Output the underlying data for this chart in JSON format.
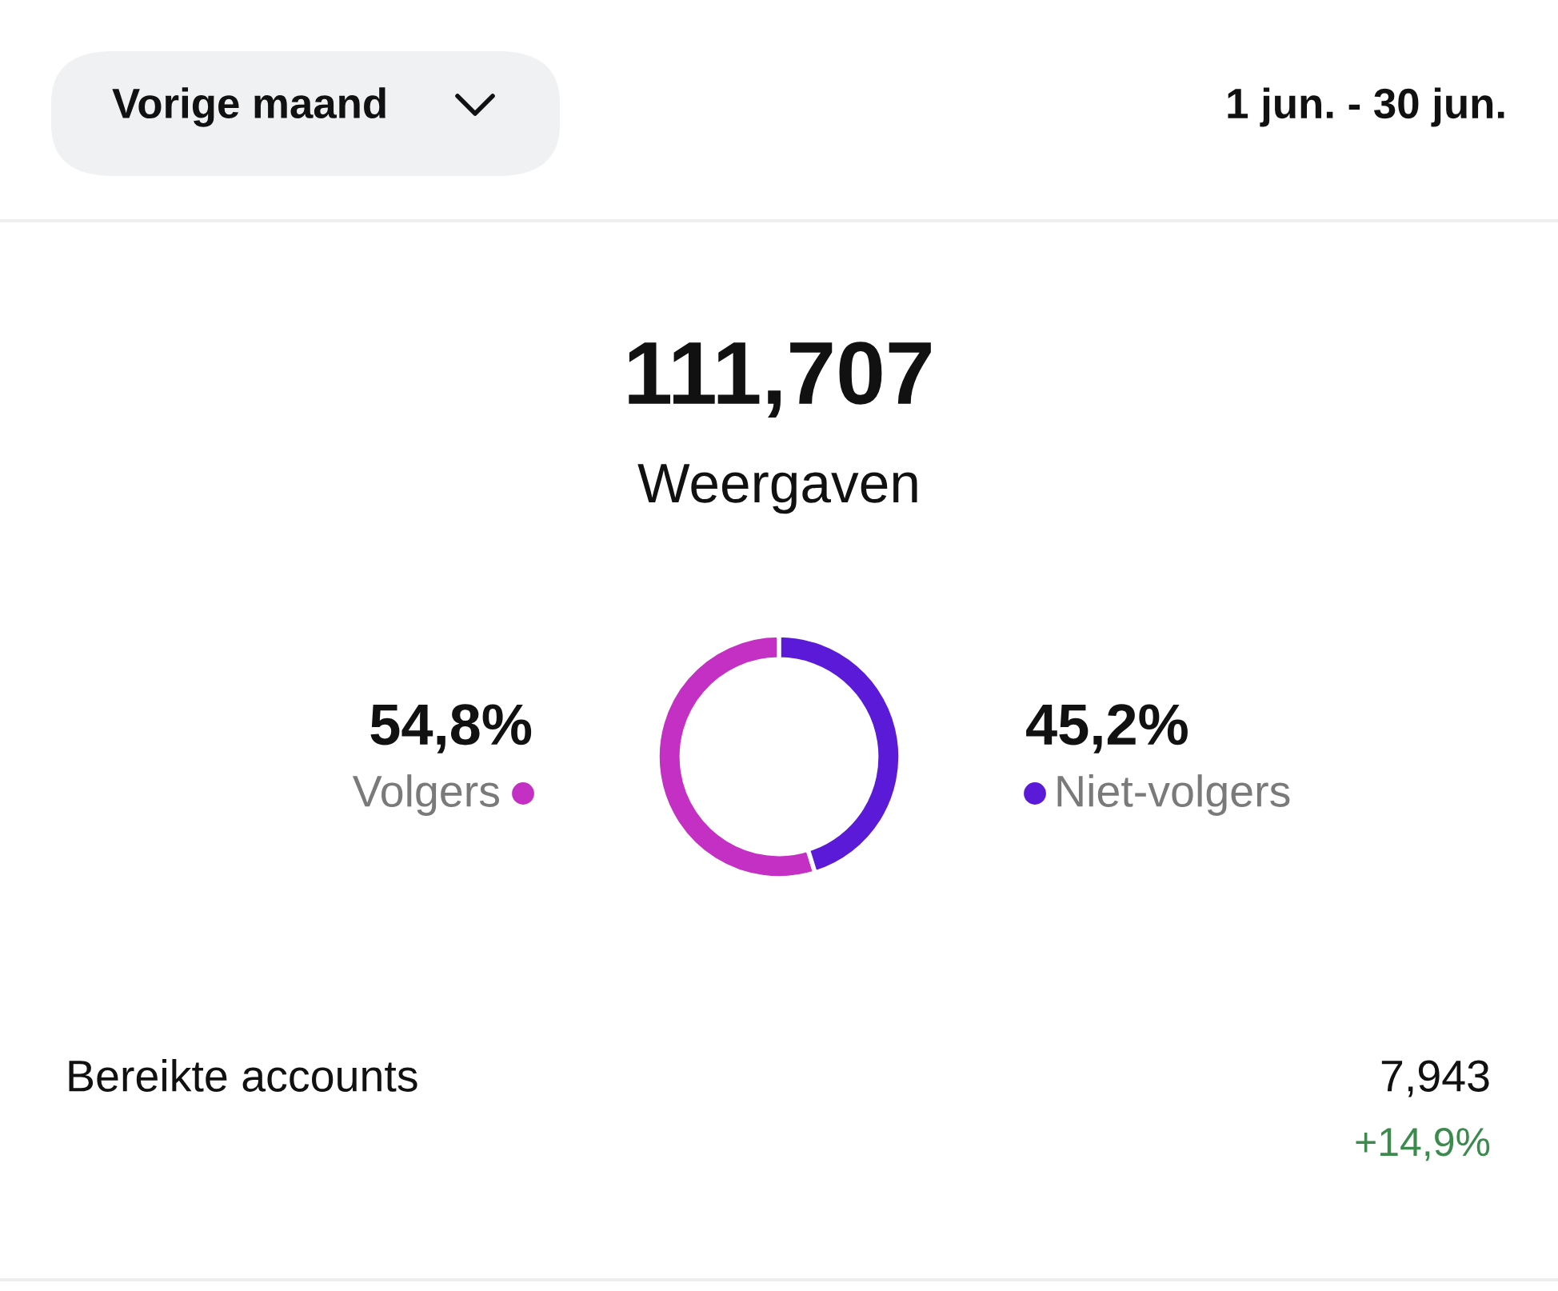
{
  "chart_data": {
    "type": "donut",
    "title": "111,707",
    "subtitle": "Weergaven",
    "categories": [
      "Volgers",
      "Niet-volgers"
    ],
    "values": [
      54.8,
      45.2
    ],
    "colors": [
      "#c42fc4",
      "#5a1ad8"
    ],
    "value_labels": [
      "54,8%",
      "45,2%"
    ],
    "annotations": [
      "Vorige maand",
      "1 jun. - 30 jun.",
      "Bereikte accounts",
      "7,943",
      "+14,9%"
    ]
  }
}
